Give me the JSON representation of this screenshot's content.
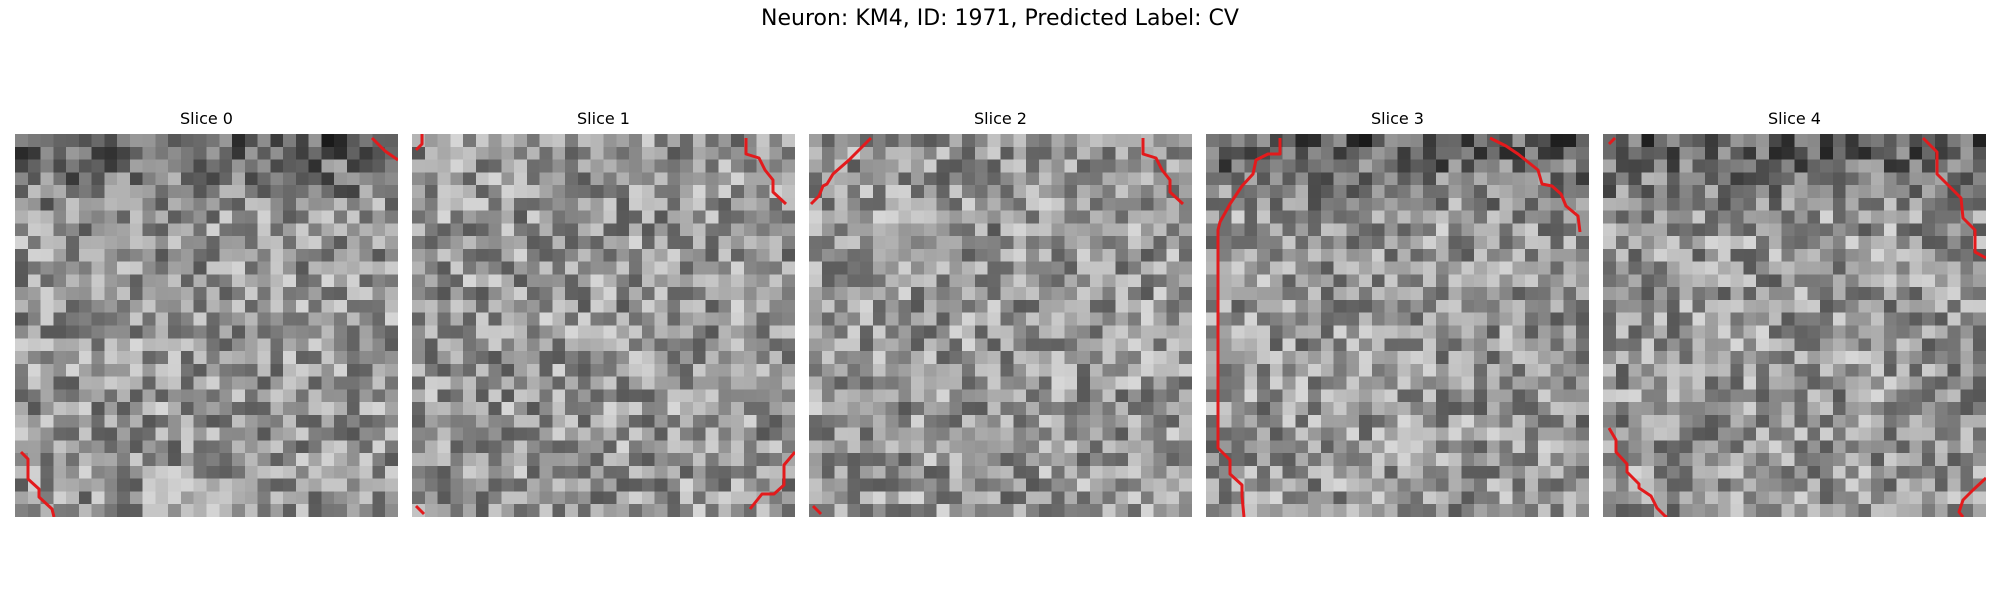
{
  "figure": {
    "title": "Neuron: KM4, ID: 1971, Predicted Label: CV"
  },
  "panels": [
    {
      "title": "Slice 0"
    },
    {
      "title": "Slice 1"
    },
    {
      "title": "Slice 2"
    },
    {
      "title": "Slice 3"
    },
    {
      "title": "Slice 4"
    }
  ],
  "overlay_color": "#e31a1c"
}
